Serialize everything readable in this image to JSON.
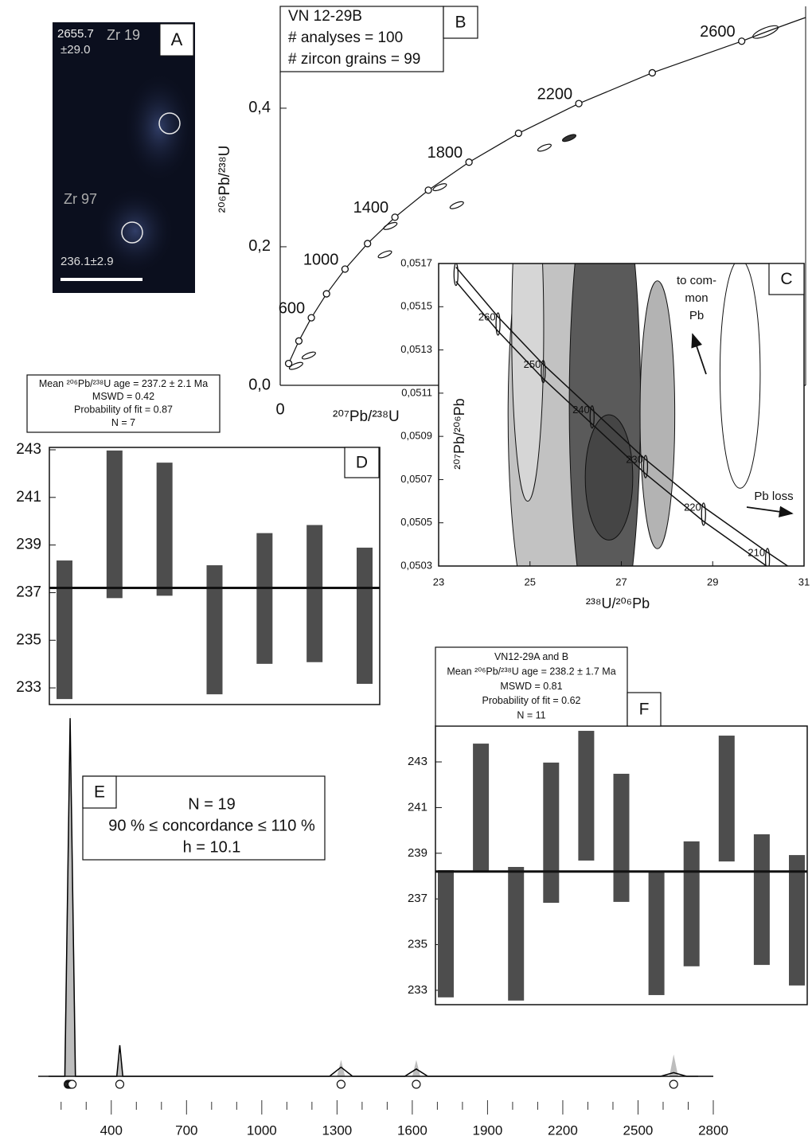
{
  "image_panel": {
    "label": "A",
    "texts": [
      "2655.7",
      "±29.0",
      "Zr 19",
      "Zr 97",
      "236.1±2.9"
    ]
  },
  "chart_data": [
    {
      "type": "concordia",
      "label": "B",
      "info": [
        "VN 12-29B",
        "# analyses = 100",
        "# zircon grains = 99"
      ],
      "x_label": "²⁰⁷Pb/²³⁸U",
      "y_label": "²⁰⁶Pb/²³⁸U",
      "xlim": [
        0,
        13.6
      ],
      "ylim": [
        0,
        0.547
      ],
      "xticks": [
        0
      ],
      "yticks": [
        {
          "value": 0,
          "label": "0,0"
        },
        {
          "value": 0.2,
          "label": "0,2"
        },
        {
          "value": 0.4,
          "label": "0,4"
        }
      ],
      "concordia": {
        "x": [
          0.2177,
          0.4828,
          0.8055,
          1.1988,
          1.6774,
          2.2603,
          2.9699,
          3.8343,
          4.8867,
          6.1684,
          7.7291,
          9.63,
          11.945
        ],
        "y": [
          0.0315,
          0.064,
          0.0975,
          0.1321,
          0.1678,
          0.2046,
          0.2426,
          0.2817,
          0.3221,
          0.3638,
          0.4067,
          0.4511,
          0.4967
        ],
        "ages": [
          null,
          null,
          600,
          null,
          1000,
          null,
          1400,
          null,
          1800,
          null,
          2200,
          null,
          2600
        ]
      },
      "ellipses": {
        "x": [
          12.56,
          7.48,
          6.84,
          4.13,
          4.57,
          2.85,
          2.71,
          0.74,
          0.41
        ],
        "y": [
          0.51,
          0.357,
          0.343,
          0.286,
          0.26,
          0.23,
          0.189,
          0.043,
          0.028
        ]
      }
    },
    {
      "type": "tera-wasserburg",
      "label": "C",
      "x_label": "²³⁸U/²⁰⁶Pb",
      "y_label": "²⁰⁷Pb/²⁰⁶Pb",
      "xlim": [
        23,
        31
      ],
      "ylim": [
        0.0503,
        0.0517
      ],
      "xticks": [
        23,
        25,
        27,
        29,
        31
      ],
      "yticks": [
        {
          "value": 0.0503,
          "label": "0,0503"
        },
        {
          "value": 0.0505,
          "label": "0,0505"
        },
        {
          "value": 0.0507,
          "label": "0,0507"
        },
        {
          "value": 0.0509,
          "label": "0,0509"
        },
        {
          "value": 0.0511,
          "label": "0,0511"
        },
        {
          "value": 0.0513,
          "label": "0,0513"
        },
        {
          "value": 0.0515,
          "label": "0,0515"
        },
        {
          "value": 0.0517,
          "label": "0,0517"
        }
      ],
      "concordia": {
        "x": [
          31.74,
          30.2,
          28.8,
          27.53,
          26.36,
          25.29,
          24.3,
          23.38
        ],
        "y": [
          0.05011,
          0.05033,
          0.05054,
          0.05076,
          0.05099,
          0.0512,
          0.05142,
          0.05165
        ],
        "ages": [
          null,
          210,
          220,
          230,
          240,
          250,
          260,
          null
        ]
      },
      "ellipses": {
        "x": [
          25.39,
          24.95,
          26.64,
          26.73,
          27.79,
          29.6
        ],
        "y": [
          0.051,
          0.0514,
          0.05105,
          0.05071,
          0.051,
          0.05119
        ],
        "sx": [
          0.87,
          0.35,
          0.78,
          0.52,
          0.38,
          0.44
        ],
        "sy": [
          0.0011,
          0.0008,
          0.0012,
          0.00029,
          0.00062,
          0.00053
        ],
        "colors": [
          "#c2c2c2",
          "#d6d6d6",
          "#5a5a5a",
          "#454545",
          "#b3b3b3",
          "#ffffff"
        ]
      },
      "annotations": {
        "common_pb": [
          "to com-",
          "mon",
          "Pb"
        ],
        "pb_loss": "Pb loss"
      }
    },
    {
      "type": "weighted-mean",
      "label": "D",
      "info": [
        "Mean ²⁰⁶Pb/²³⁸U age = 237.2 ± 2.1 Ma",
        "MSWD = 0.42",
        "Probability of fit = 0.87",
        "N = 7"
      ],
      "ylim": [
        232.3,
        243.1
      ],
      "yticks": [
        233,
        235,
        237,
        239,
        241,
        243
      ],
      "low": [
        232.53,
        236.77,
        236.87,
        232.73,
        234.01,
        234.08,
        233.17
      ],
      "high": [
        238.35,
        242.97,
        242.46,
        238.15,
        239.5,
        239.84,
        238.89
      ],
      "mean": 237.2,
      "color": "#4d4d4d"
    },
    {
      "type": "kde",
      "label": "E",
      "info": [
        "N = 19",
        "90 % ≤ concordance ≤ 110 %",
        "h = 10.1"
      ],
      "xlim": [
        150,
        2800
      ],
      "xticks": [
        400,
        700,
        1000,
        1300,
        1600,
        1900,
        2200,
        2500,
        2800
      ],
      "minor_xticks": [
        200,
        300,
        500,
        600,
        800,
        900,
        1100,
        1200,
        1400,
        1500,
        1700,
        1800,
        2000,
        2100,
        2300,
        2400,
        2600,
        2700
      ],
      "ylim": [
        0,
        1
      ],
      "series": [
        {
          "type": "area",
          "color": "#bdbdbd",
          "x": [
            150,
            212,
            236,
            260,
            410,
            422,
            434,
            446,
            1280,
            1300,
            1316,
            1332,
            1580,
            1600,
            1616,
            1632,
            2600,
            2625,
            2642,
            2660,
            2800
          ],
          "values": [
            0,
            0,
            1.0,
            0,
            0,
            0,
            0.06,
            0,
            0,
            0,
            0.045,
            0,
            0,
            0,
            0.045,
            0,
            0,
            0,
            0.06,
            0,
            0
          ]
        },
        {
          "type": "line",
          "color": "#000000",
          "x": [
            150,
            215,
            236,
            257,
            410,
            422,
            434,
            446,
            1270,
            1316,
            1362,
            1570,
            1616,
            1662,
            2590,
            2642,
            2694,
            2800
          ],
          "values": [
            0,
            0,
            0.98,
            0,
            0,
            0,
            0.085,
            0,
            0,
            0.025,
            0,
            0,
            0.02,
            0,
            0,
            0.01,
            0,
            0
          ]
        }
      ],
      "dates": [
        228,
        232,
        236,
        240,
        244,
        434,
        1316,
        1616,
        2642
      ]
    },
    {
      "type": "weighted-mean",
      "label": "F",
      "info": [
        "VN12-29A and B",
        "Mean ²⁰⁶Pb/²³⁸U age = 238.2 ± 1.7 Ma",
        "MSWD = 0.81",
        "Probability of fit = 0.62",
        "N = 11"
      ],
      "ylim": [
        232.37,
        244.57
      ],
      "yticks": [
        233,
        235,
        237,
        239,
        241,
        243
      ],
      "low": [
        232.69,
        238.19,
        232.55,
        236.83,
        238.68,
        236.87,
        232.79,
        234.05,
        238.64,
        234.11,
        233.21
      ],
      "high": [
        238.26,
        243.8,
        238.4,
        242.97,
        244.36,
        242.48,
        238.16,
        239.52,
        244.15,
        239.83,
        238.92
      ],
      "mean": 238.2,
      "color": "#4d4d4d"
    }
  ]
}
